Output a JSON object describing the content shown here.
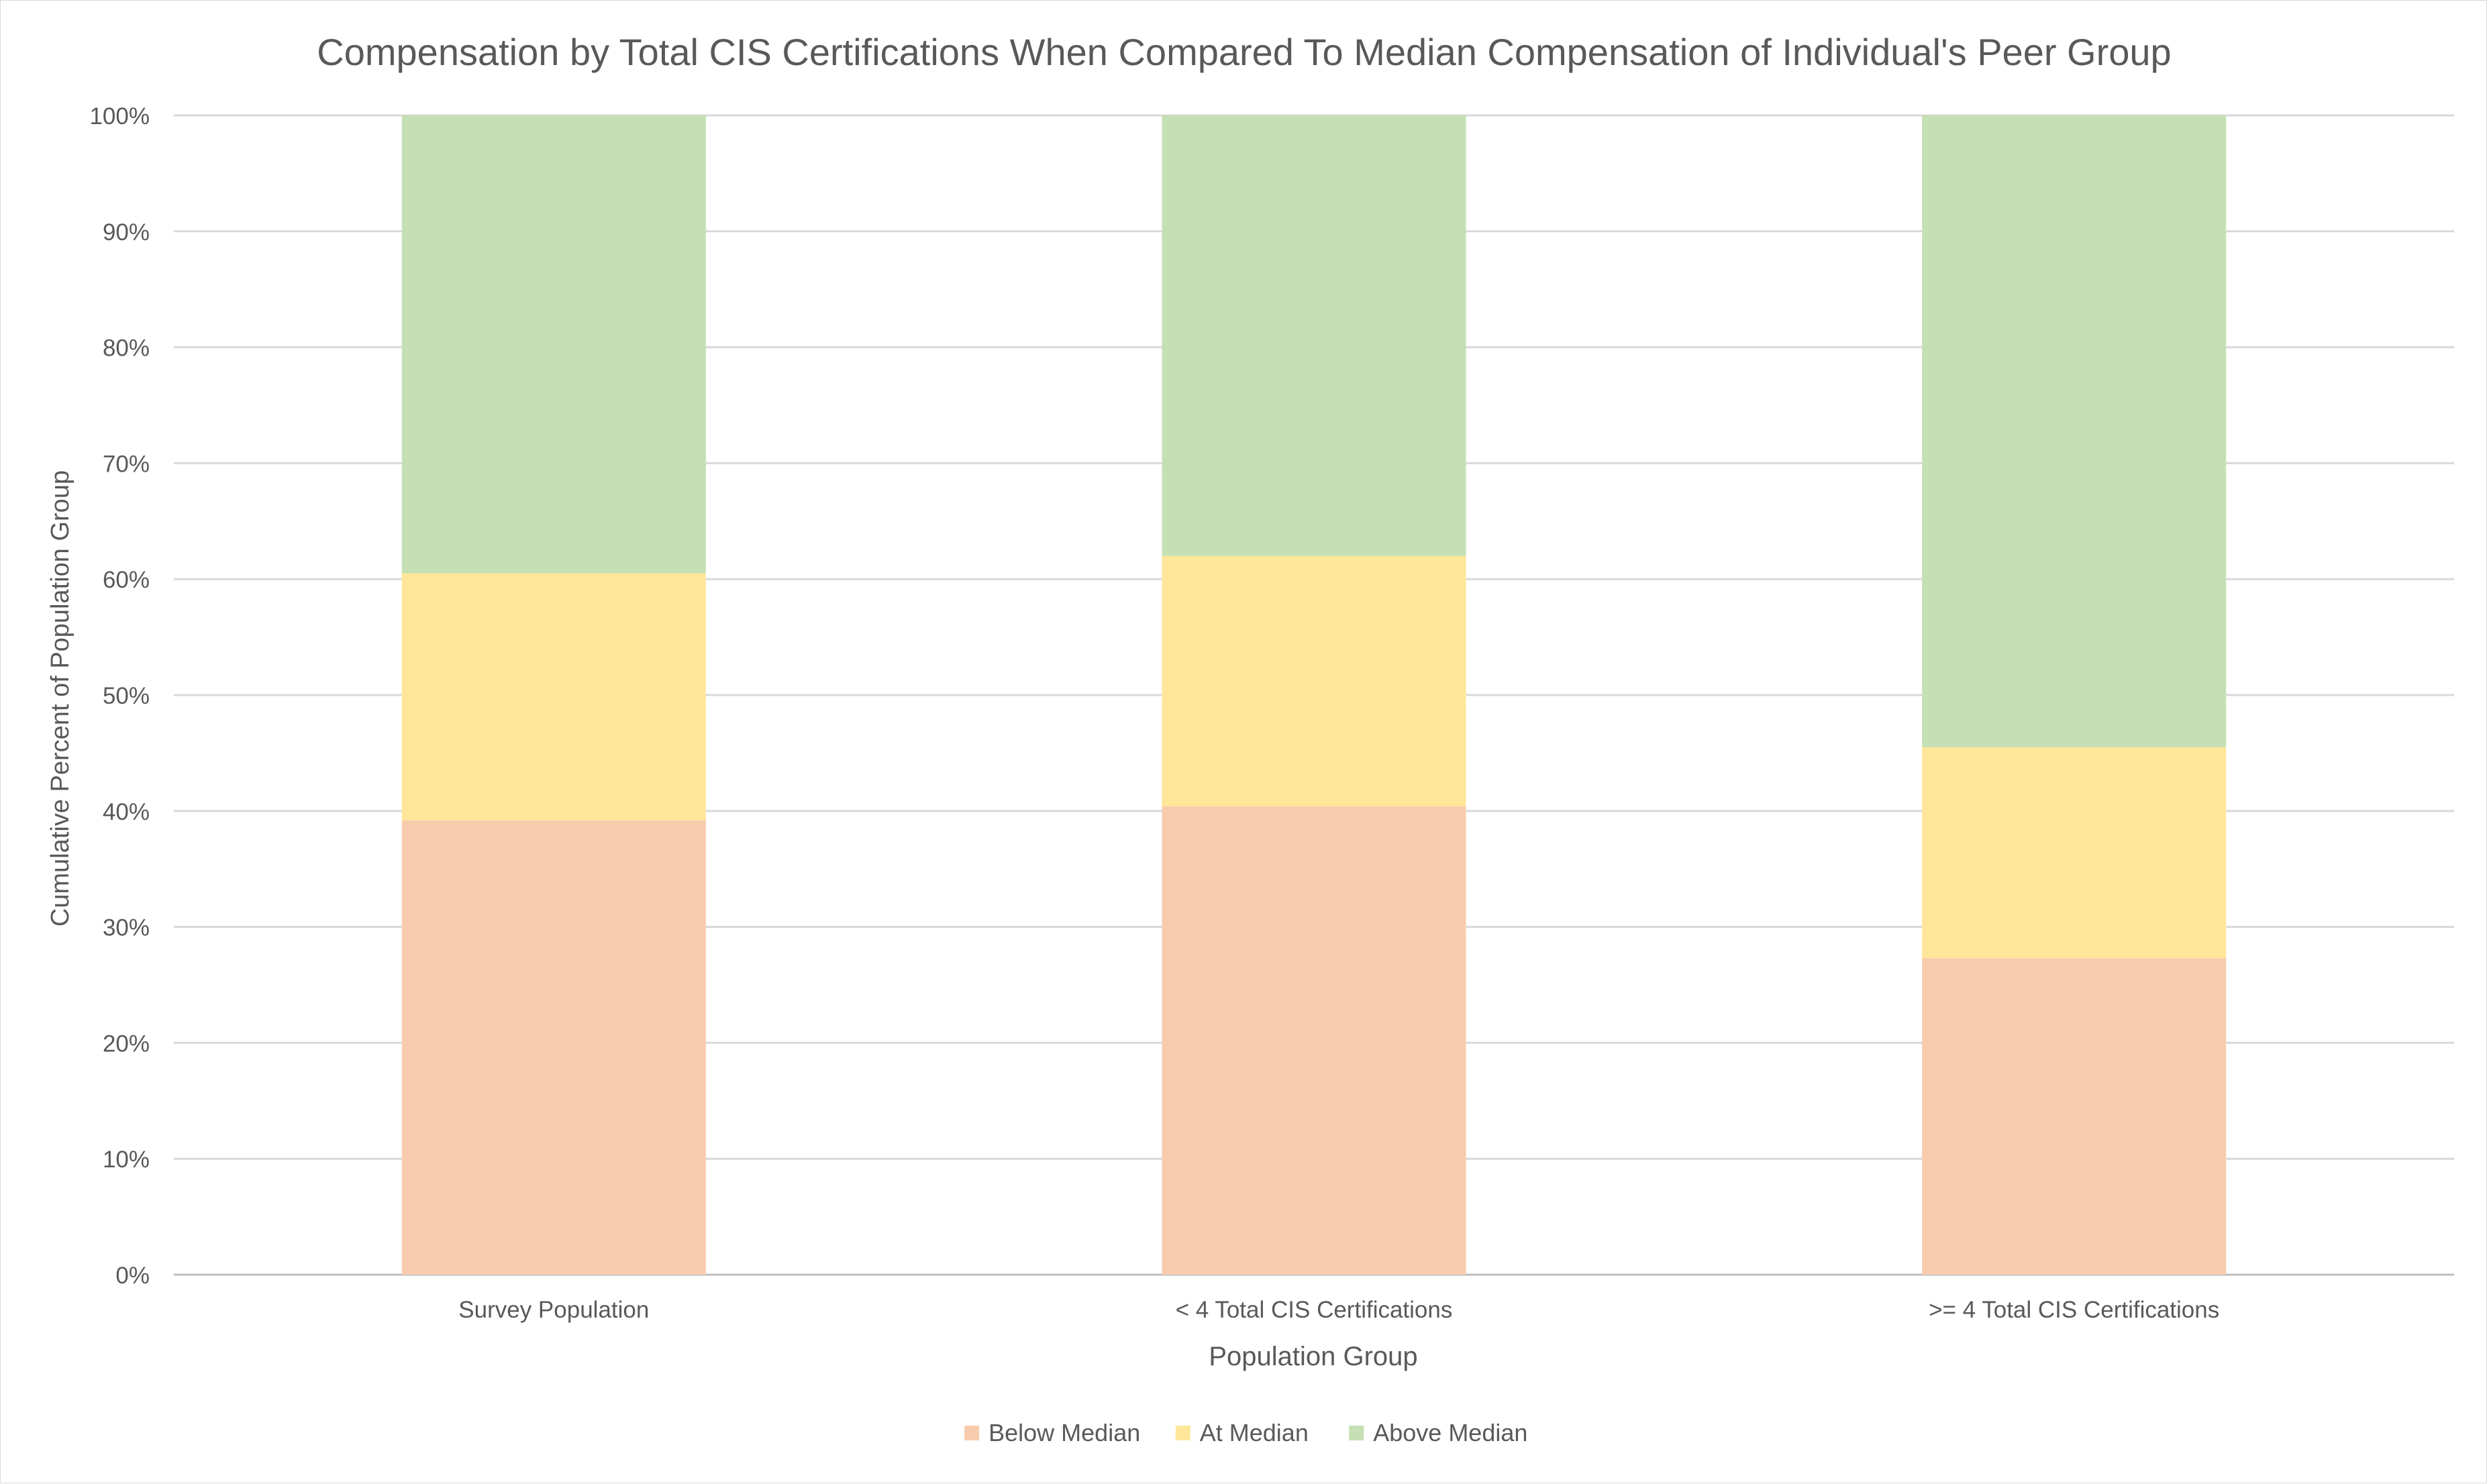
{
  "chart_data": {
    "type": "bar",
    "stacked": true,
    "title": "Compensation by Total CIS Certifications When Compared To Median Compensation of Individual's Peer Group",
    "xlabel": "Population Group",
    "ylabel": "Cumulative Percent of Population Group",
    "categories": [
      "Survey Population",
      "< 4 Total CIS Certifications",
      ">= 4 Total CIS Certifications"
    ],
    "series": [
      {
        "name": "Below Median",
        "color": "#f8cbad",
        "values": [
          39.2,
          40.4,
          27.3
        ]
      },
      {
        "name": "At Median",
        "color": "#ffe699",
        "values": [
          21.3,
          21.6,
          18.2
        ]
      },
      {
        "name": "Above Median",
        "color": "#c5e0b4",
        "values": [
          39.5,
          38.0,
          54.5
        ]
      }
    ],
    "ylim": [
      0,
      100
    ],
    "yticks": [
      "0%",
      "10%",
      "20%",
      "30%",
      "40%",
      "50%",
      "60%",
      "70%",
      "80%",
      "90%",
      "100%"
    ],
    "grid": true,
    "legend": "bottom"
  }
}
